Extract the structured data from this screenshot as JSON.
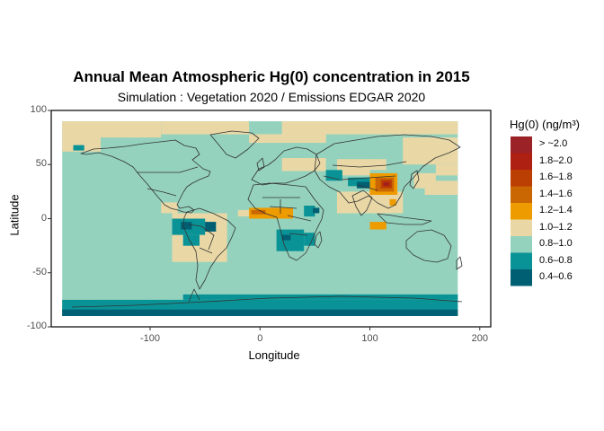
{
  "title": "Annual Mean Atmospheric Hg(0) concentration in 2015",
  "subtitle": "Simulation : Vegetation 2020 / Emissions EDGAR 2020",
  "axes": {
    "xlabel": "Longitude",
    "ylabel": "Latitude",
    "xlim": [
      -190,
      210
    ],
    "ylim": [
      -100,
      100
    ],
    "xticks": [
      {
        "value": -100,
        "label": "-100"
      },
      {
        "value": 0,
        "label": "0"
      },
      {
        "value": 100,
        "label": "100"
      },
      {
        "value": 200,
        "label": "200"
      }
    ],
    "yticks": [
      {
        "value": 100,
        "label": "100"
      },
      {
        "value": 50,
        "label": "50"
      },
      {
        "value": 0,
        "label": "0"
      },
      {
        "value": -50,
        "label": "-50"
      },
      {
        "value": -100,
        "label": "-100"
      }
    ]
  },
  "legend": {
    "title": "Hg(0) (ng/m³)",
    "placement": "right",
    "classes": [
      {
        "label": "> ~2.0",
        "color": "#9b2226"
      },
      {
        "label": "1.8–2.0",
        "color": "#ae2012"
      },
      {
        "label": "1.6–1.8",
        "color": "#bb3e03"
      },
      {
        "label": "1.4–1.6",
        "color": "#ca6702"
      },
      {
        "label": "1.2–1.4",
        "color": "#ee9b00"
      },
      {
        "label": "1.0–1.2",
        "color": "#e9d8a6"
      },
      {
        "label": "0.8–1.0",
        "color": "#94d2bd"
      },
      {
        "label": "0.6–0.8",
        "color": "#0a9396"
      },
      {
        "label": "0.4–0.6",
        "color": "#005f73"
      }
    ]
  },
  "chart_data": {
    "type": "heatmap",
    "extent": {
      "lon": [
        -180,
        180
      ],
      "lat": [
        -90,
        90
      ]
    },
    "background_class": "0.8–1.0",
    "regions": [
      {
        "lon": [
          -180,
          -90
        ],
        "lat": [
          75,
          90
        ],
        "class": "1.0–1.2"
      },
      {
        "lon": [
          -90,
          -10
        ],
        "lat": [
          78,
          90
        ],
        "class": "1.0–1.2"
      },
      {
        "lon": [
          20,
          180
        ],
        "lat": [
          78,
          90
        ],
        "class": "1.0–1.2"
      },
      {
        "lon": [
          -10,
          60
        ],
        "lat": [
          70,
          78
        ],
        "class": "1.0–1.2"
      },
      {
        "lon": [
          -180,
          -145
        ],
        "lat": [
          62,
          75
        ],
        "class": "1.0–1.2"
      },
      {
        "lon": [
          130,
          180
        ],
        "lat": [
          50,
          75
        ],
        "class": "1.0–1.2"
      },
      {
        "lon": [
          160,
          180
        ],
        "lat": [
          40,
          50
        ],
        "class": "1.0–1.2"
      },
      {
        "lon": [
          140,
          160
        ],
        "lat": [
          28,
          42
        ],
        "class": "1.0–1.2"
      },
      {
        "lon": [
          150,
          180
        ],
        "lat": [
          22,
          35
        ],
        "class": "1.0–1.2"
      },
      {
        "lon": [
          70,
          100
        ],
        "lat": [
          40,
          55
        ],
        "class": "1.0–1.2"
      },
      {
        "lon": [
          100,
          115
        ],
        "lat": [
          45,
          55
        ],
        "class": "1.0–1.2"
      },
      {
        "lon": [
          20,
          60
        ],
        "lat": [
          44,
          56
        ],
        "class": "1.0–1.2"
      },
      {
        "lon": [
          70,
          130
        ],
        "lat": [
          5,
          25
        ],
        "class": "1.0–1.2"
      },
      {
        "lon": [
          -90,
          -75
        ],
        "lat": [
          5,
          15
        ],
        "class": "1.0–1.2"
      },
      {
        "lon": [
          -20,
          15
        ],
        "lat": [
          2,
          8
        ],
        "class": "1.0–1.2"
      },
      {
        "lon": [
          -80,
          -30
        ],
        "lat": [
          -40,
          5
        ],
        "class": "1.0–1.2"
      },
      {
        "lon": [
          -180,
          -150
        ],
        "lat": [
          -82,
          -75
        ],
        "class": "1.0–1.2"
      },
      {
        "lon": [
          -180,
          180
        ],
        "lat": [
          -90,
          -75
        ],
        "class": "0.6–0.8"
      },
      {
        "lon": [
          -70,
          180
        ],
        "lat": [
          -75,
          -70
        ],
        "class": "0.6–0.8"
      },
      {
        "lon": [
          -180,
          180
        ],
        "lat": [
          -90,
          -84
        ],
        "class": "0.4–0.6"
      },
      {
        "lon": [
          -170,
          -160
        ],
        "lat": [
          63,
          68
        ],
        "class": "0.6–0.8"
      },
      {
        "lon": [
          -80,
          -50
        ],
        "lat": [
          -15,
          0
        ],
        "class": "0.6–0.8"
      },
      {
        "lon": [
          -70,
          -55
        ],
        "lat": [
          -25,
          -15
        ],
        "class": "0.6–0.8"
      },
      {
        "lon": [
          -50,
          -40
        ],
        "lat": [
          -12,
          -3
        ],
        "class": "0.4–0.6"
      },
      {
        "lon": [
          -72,
          -62
        ],
        "lat": [
          -10,
          -3
        ],
        "class": "0.4–0.6"
      },
      {
        "lon": [
          15,
          40
        ],
        "lat": [
          -30,
          -10
        ],
        "class": "0.6–0.8"
      },
      {
        "lon": [
          20,
          28
        ],
        "lat": [
          -20,
          -15
        ],
        "class": "0.4–0.6"
      },
      {
        "lon": [
          40,
          50
        ],
        "lat": [
          -25,
          -13
        ],
        "class": "0.6–0.8"
      },
      {
        "lon": [
          40,
          50
        ],
        "lat": [
          2,
          12
        ],
        "class": "0.6–0.8"
      },
      {
        "lon": [
          48,
          54
        ],
        "lat": [
          5,
          10
        ],
        "class": "0.4–0.6"
      },
      {
        "lon": [
          60,
          75
        ],
        "lat": [
          35,
          45
        ],
        "class": "0.6–0.8"
      },
      {
        "lon": [
          80,
          100
        ],
        "lat": [
          30,
          38
        ],
        "class": "0.6–0.8"
      },
      {
        "lon": [
          88,
          100
        ],
        "lat": [
          28,
          34
        ],
        "class": "0.4–0.6"
      },
      {
        "lon": [
          -10,
          30
        ],
        "lat": [
          0,
          10
        ],
        "class": "1.2–1.4"
      },
      {
        "lon": [
          -8,
          5
        ],
        "lat": [
          4,
          8
        ],
        "class": "1.4–1.6"
      },
      {
        "lon": [
          100,
          125
        ],
        "lat": [
          22,
          42
        ],
        "class": "1.2–1.4"
      },
      {
        "lon": [
          105,
          122
        ],
        "lat": [
          25,
          38
        ],
        "class": "1.4–1.6"
      },
      {
        "lon": [
          110,
          120
        ],
        "lat": [
          28,
          36
        ],
        "class": "1.6–1.8"
      },
      {
        "lon": [
          112,
          118
        ],
        "lat": [
          30,
          34
        ],
        "class": "1.8–2.0"
      },
      {
        "lon": [
          113,
          116
        ],
        "lat": [
          31,
          33
        ],
        "class": "> ~2.0"
      },
      {
        "lon": [
          100,
          115
        ],
        "lat": [
          -10,
          -3
        ],
        "class": "1.2–1.4"
      },
      {
        "lon": [
          118,
          124
        ],
        "lat": [
          12,
          18
        ],
        "class": "1.2–1.4"
      }
    ]
  }
}
